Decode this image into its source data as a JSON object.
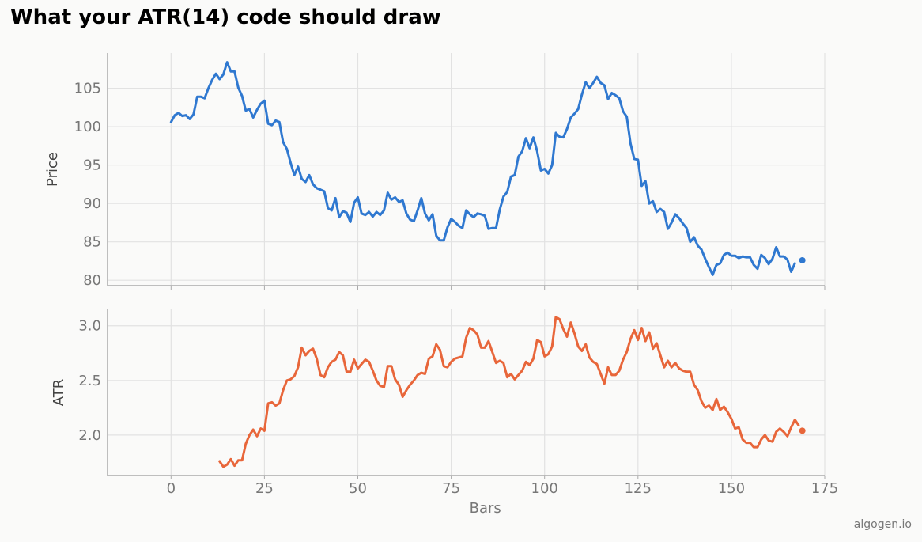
{
  "title": "What your ATR(14) code should draw",
  "watermark": "algogen.io",
  "chart_data": [
    {
      "type": "line",
      "ylabel": "Price",
      "xlabel": "",
      "xlim": [
        -17,
        175
      ],
      "ylim": [
        79.3,
        109.6
      ],
      "xticks": [
        0,
        25,
        50,
        75,
        100,
        125,
        150,
        175
      ],
      "yticks": [
        80,
        85,
        90,
        95,
        100,
        105
      ],
      "grid": true,
      "series": [
        {
          "color": "#2f78d0",
          "x_start": 0,
          "values": [
            100.6,
            101.5,
            101.8,
            101.4,
            101.5,
            101.0,
            101.6,
            103.9,
            103.9,
            103.7,
            105.0,
            106.1,
            106.9,
            106.2,
            106.8,
            108.4,
            107.2,
            107.2,
            105.1,
            104.0,
            102.1,
            102.3,
            101.2,
            102.2,
            103.0,
            103.4,
            100.4,
            100.2,
            100.8,
            100.6,
            98.0,
            97.1,
            95.3,
            93.7,
            94.8,
            93.2,
            92.8,
            93.7,
            92.5,
            92.0,
            91.8,
            91.6,
            89.4,
            89.1,
            90.7,
            88.2,
            89.0,
            88.8,
            87.6,
            90.1,
            90.8,
            88.7,
            88.5,
            88.9,
            88.3,
            88.9,
            88.5,
            89.1,
            91.4,
            90.5,
            90.8,
            90.2,
            90.4,
            88.7,
            87.9,
            87.7,
            89.1,
            90.7,
            88.7,
            87.8,
            88.6,
            85.8,
            85.2,
            85.2,
            86.9,
            88.0,
            87.6,
            87.1,
            86.8,
            89.1,
            88.6,
            88.2,
            88.7,
            88.6,
            88.4,
            86.7,
            86.8,
            86.8,
            89.2,
            90.9,
            91.5,
            93.5,
            93.7,
            96.1,
            96.8,
            98.5,
            97.2,
            98.6,
            96.8,
            94.3,
            94.5,
            93.9,
            95.0,
            99.2,
            98.7,
            98.6,
            99.7,
            101.2,
            101.7,
            102.3,
            104.2,
            105.8,
            105.0,
            105.7,
            106.5,
            105.7,
            105.4,
            103.6,
            104.4,
            104.1,
            103.7,
            102.0,
            101.3,
            97.8,
            95.8,
            95.7,
            92.3,
            92.9,
            90.0,
            90.3,
            88.9,
            89.3,
            88.9,
            86.7,
            87.5,
            88.6,
            88.1,
            87.4,
            86.8,
            85.0,
            85.6,
            84.5,
            84.0,
            82.8,
            81.7,
            80.7,
            82.0,
            82.2,
            83.3,
            83.6,
            83.2,
            83.2,
            82.9,
            83.1,
            83.0,
            83.0,
            82.0,
            81.5,
            83.3,
            82.9,
            82.1,
            82.8,
            84.3,
            83.1,
            83.1,
            82.7,
            81.1,
            82.2
          ],
          "last_point": {
            "x": 169,
            "y": 82.6
          }
        }
      ]
    },
    {
      "type": "line",
      "ylabel": "ATR",
      "xlabel": "Bars",
      "xlim": [
        -17,
        175
      ],
      "ylim": [
        1.63,
        3.15
      ],
      "xticks": [
        0,
        25,
        50,
        75,
        100,
        125,
        150,
        175
      ],
      "yticks": [
        2.0,
        2.5,
        3.0
      ],
      "grid": true,
      "series": [
        {
          "color": "#e8663a",
          "x_start": 13,
          "values": [
            1.76,
            1.71,
            1.73,
            1.78,
            1.72,
            1.77,
            1.77,
            1.92,
            2.0,
            2.05,
            1.99,
            2.06,
            2.04,
            2.29,
            2.3,
            2.27,
            2.29,
            2.41,
            2.5,
            2.51,
            2.54,
            2.62,
            2.8,
            2.73,
            2.77,
            2.79,
            2.7,
            2.55,
            2.53,
            2.62,
            2.67,
            2.69,
            2.76,
            2.73,
            2.58,
            2.58,
            2.69,
            2.61,
            2.65,
            2.69,
            2.67,
            2.59,
            2.5,
            2.45,
            2.44,
            2.63,
            2.63,
            2.51,
            2.46,
            2.35,
            2.41,
            2.46,
            2.5,
            2.55,
            2.57,
            2.56,
            2.7,
            2.72,
            2.83,
            2.78,
            2.63,
            2.62,
            2.67,
            2.7,
            2.71,
            2.72,
            2.89,
            2.98,
            2.96,
            2.92,
            2.8,
            2.8,
            2.86,
            2.76,
            2.66,
            2.68,
            2.66,
            2.53,
            2.56,
            2.51,
            2.55,
            2.59,
            2.67,
            2.64,
            2.7,
            2.87,
            2.85,
            2.72,
            2.74,
            2.81,
            3.08,
            3.06,
            2.97,
            2.9,
            3.03,
            2.93,
            2.81,
            2.77,
            2.83,
            2.71,
            2.67,
            2.65,
            2.56,
            2.47,
            2.62,
            2.55,
            2.55,
            2.59,
            2.69,
            2.76,
            2.88,
            2.96,
            2.87,
            2.98,
            2.86,
            2.94,
            2.79,
            2.84,
            2.73,
            2.62,
            2.68,
            2.62,
            2.66,
            2.61,
            2.59,
            2.58,
            2.58,
            2.46,
            2.41,
            2.31,
            2.25,
            2.27,
            2.23,
            2.33,
            2.23,
            2.26,
            2.21,
            2.15,
            2.06,
            2.07,
            1.96,
            1.93,
            1.93,
            1.89,
            1.89,
            1.96,
            2.0,
            1.95,
            1.94,
            2.03,
            2.06,
            2.03,
            1.99,
            2.07,
            2.14,
            2.09
          ],
          "last_point": {
            "x": 169,
            "y": 2.04
          }
        }
      ]
    }
  ]
}
